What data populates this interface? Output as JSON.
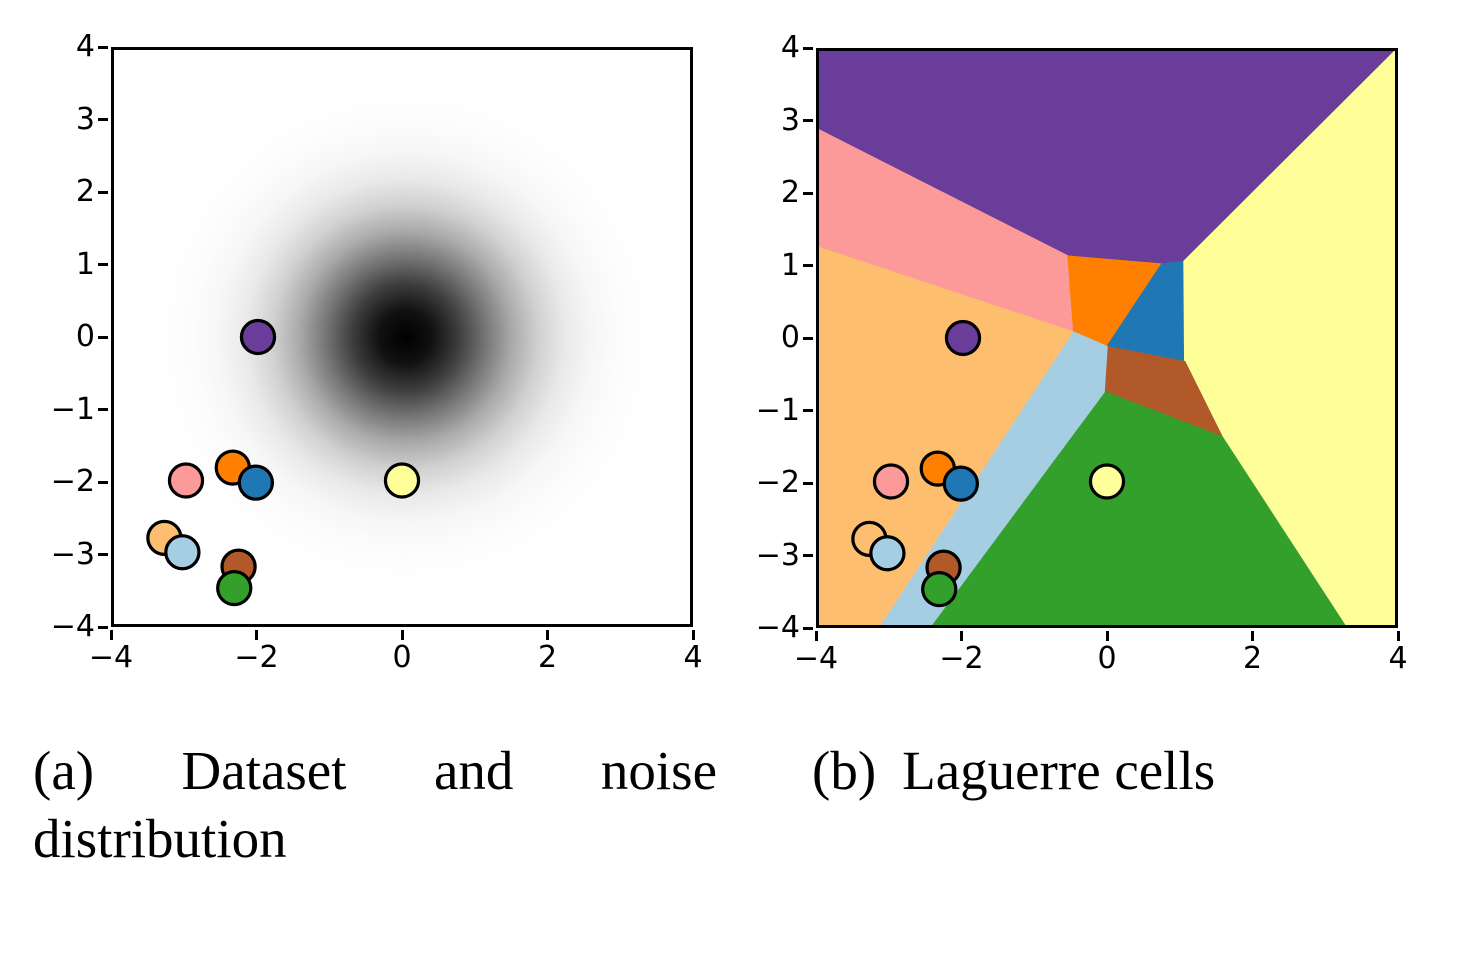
{
  "captions": {
    "a_words": [
      "(a)",
      "Dataset",
      "and",
      "noise"
    ],
    "a_line2": "distribution",
    "b_label": "(b)",
    "b_text": "Laguerre cells"
  },
  "marker": {
    "radius_units": 0.23,
    "edge_color": "#000000",
    "edge_width_units": 0.045
  },
  "chart_data": [
    {
      "id": "a",
      "type": "scatter",
      "title": "(a) Dataset and noise distribution",
      "xlim": [
        -4,
        4
      ],
      "ylim": [
        -4,
        4
      ],
      "grid": false,
      "legend": "none",
      "x_tick_values": [
        -4,
        -2,
        0,
        2,
        4
      ],
      "x_tick_labels": [
        "−4",
        "−2",
        "0",
        "2",
        "4"
      ],
      "y_tick_values": [
        4,
        3,
        2,
        1,
        0,
        -1,
        -2,
        -3,
        -4
      ],
      "y_tick_labels": [
        "4",
        "3",
        "2",
        "1",
        "0",
        "−1",
        "−2",
        "−3",
        "−4"
      ],
      "noise": {
        "kind": "gaussian-density",
        "center": [
          0.05,
          0.0
        ],
        "sigma_units": 1.0,
        "radius": 3.7,
        "color": "#000000",
        "stops": [
          [
            0,
            1
          ],
          [
            0.1,
            0.934
          ],
          [
            0.2,
            0.76
          ],
          [
            0.3,
            0.54
          ],
          [
            0.4,
            0.334
          ],
          [
            0.5,
            0.181
          ],
          [
            0.6,
            0.085
          ],
          [
            0.7,
            0.035
          ],
          [
            0.8,
            0.0125
          ],
          [
            0.9,
            0.004
          ],
          [
            1,
            0
          ]
        ]
      },
      "points": [
        {
          "name": "purple",
          "x": -2.0,
          "y": 0.0,
          "color": "#6A3D9A"
        },
        {
          "name": "pink",
          "x": -3.0,
          "y": -2.0,
          "color": "#FB9A99"
        },
        {
          "name": "orange",
          "x": -2.35,
          "y": -1.82,
          "color": "#FF7F00"
        },
        {
          "name": "blue",
          "x": -2.03,
          "y": -2.03,
          "color": "#1F78B4"
        },
        {
          "name": "yellow",
          "x": 0.0,
          "y": -2.0,
          "color": "#FFFF99"
        },
        {
          "name": "light-orange",
          "x": -3.3,
          "y": -2.8,
          "color": "#FDBF6F"
        },
        {
          "name": "light-blue",
          "x": -3.05,
          "y": -3.0,
          "color": "#A6CEE3"
        },
        {
          "name": "brown",
          "x": -2.27,
          "y": -3.2,
          "color": "#B15928"
        },
        {
          "name": "green",
          "x": -2.33,
          "y": -3.5,
          "color": "#33A02C"
        }
      ]
    },
    {
      "id": "b",
      "type": "scatter-with-regions",
      "title": "(b) Laguerre cells",
      "xlim": [
        -4,
        4
      ],
      "ylim": [
        -4,
        4
      ],
      "grid": false,
      "legend": "none",
      "x_tick_values": [
        -4,
        -2,
        0,
        2,
        4
      ],
      "x_tick_labels": [
        "−4",
        "−2",
        "0",
        "2",
        "4"
      ],
      "y_tick_values": [
        4,
        3,
        2,
        1,
        0,
        -1,
        -2,
        -3,
        -4
      ],
      "y_tick_labels": [
        "4",
        "3",
        "2",
        "1",
        "0",
        "−1",
        "−2",
        "−3",
        "−4"
      ],
      "regions": [
        {
          "name": "purple",
          "color": "#6A3D9A",
          "polygon": [
            [
              -4,
              4
            ],
            [
              4,
              4
            ],
            [
              1.07,
              1.07
            ],
            [
              0.76,
              1.03
            ],
            [
              -0.54,
              1.14
            ],
            [
              -4,
              2.9
            ]
          ]
        },
        {
          "name": "pink",
          "color": "#FB9A99",
          "polygon": [
            [
              -4,
              2.9
            ],
            [
              -0.54,
              1.14
            ],
            [
              -0.46,
              0.08
            ],
            [
              -4,
              1.26
            ]
          ]
        },
        {
          "name": "light-orange",
          "color": "#FDBF6F",
          "polygon": [
            [
              -4,
              1.26
            ],
            [
              -0.46,
              0.08
            ],
            [
              -3.13,
              -4
            ],
            [
              -4,
              -4
            ]
          ]
        },
        {
          "name": "orange",
          "color": "#FF7F00",
          "polygon": [
            [
              -0.54,
              1.14
            ],
            [
              0.76,
              1.03
            ],
            [
              0.0,
              -0.12
            ],
            [
              -0.46,
              0.08
            ]
          ]
        },
        {
          "name": "blue",
          "color": "#1F78B4",
          "polygon": [
            [
              0.76,
              1.03
            ],
            [
              1.07,
              1.07
            ],
            [
              1.08,
              -0.33
            ],
            [
              0.0,
              -0.12
            ]
          ]
        },
        {
          "name": "yellow",
          "color": "#FFFF99",
          "polygon": [
            [
              1.07,
              1.07
            ],
            [
              4,
              4
            ],
            [
              4,
              -4
            ],
            [
              3.3,
              -4
            ],
            [
              1.6,
              -1.38
            ],
            [
              1.08,
              -0.33
            ]
          ]
        },
        {
          "name": "brown",
          "color": "#B15928",
          "polygon": [
            [
              0.0,
              -0.12
            ],
            [
              1.08,
              -0.33
            ],
            [
              1.6,
              -1.38
            ],
            [
              -0.04,
              -0.75
            ]
          ]
        },
        {
          "name": "green",
          "color": "#33A02C",
          "polygon": [
            [
              -0.04,
              -0.75
            ],
            [
              1.6,
              -1.38
            ],
            [
              3.3,
              -4
            ],
            [
              -2.44,
              -4
            ]
          ]
        },
        {
          "name": "light-blue",
          "color": "#A6CEE3",
          "polygon": [
            [
              -0.46,
              0.08
            ],
            [
              0.0,
              -0.12
            ],
            [
              -0.04,
              -0.75
            ],
            [
              -2.44,
              -4
            ],
            [
              -3.13,
              -4
            ]
          ]
        }
      ],
      "points": [
        {
          "name": "purple",
          "x": -2.0,
          "y": 0.0,
          "color": "#6A3D9A"
        },
        {
          "name": "pink",
          "x": -3.0,
          "y": -2.0,
          "color": "#FB9A99"
        },
        {
          "name": "orange",
          "x": -2.35,
          "y": -1.82,
          "color": "#FF7F00"
        },
        {
          "name": "blue",
          "x": -2.03,
          "y": -2.03,
          "color": "#1F78B4"
        },
        {
          "name": "yellow",
          "x": 0.0,
          "y": -2.0,
          "color": "#FFFF99"
        },
        {
          "name": "light-orange",
          "x": -3.3,
          "y": -2.8,
          "color": "#FDBF6F"
        },
        {
          "name": "light-blue",
          "x": -3.05,
          "y": -3.0,
          "color": "#A6CEE3"
        },
        {
          "name": "brown",
          "x": -2.27,
          "y": -3.2,
          "color": "#B15928"
        },
        {
          "name": "green",
          "x": -2.33,
          "y": -3.5,
          "color": "#33A02C"
        }
      ]
    }
  ]
}
